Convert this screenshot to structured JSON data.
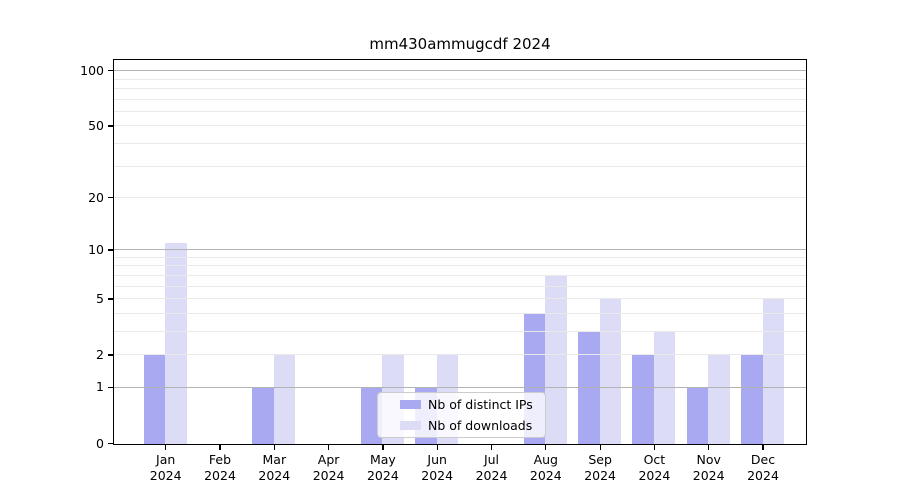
{
  "title": "mm430ammugcdf 2024",
  "colors": {
    "ips_bar": "#a9a9f1",
    "downloads_bar": "#dcdcf7",
    "grid_major": "#b3b3b3",
    "grid_minor": "#e9e9e9",
    "spine": "#000000",
    "legend_border": "#cccccc"
  },
  "legend": {
    "items": [
      {
        "label": "Nb of distinct IPs",
        "color": "#a9a9f1"
      },
      {
        "label": "Nb of downloads",
        "color": "#dcdcf7"
      }
    ]
  },
  "chart_data": {
    "type": "bar",
    "title": "mm430ammugcdf 2024",
    "categories": [
      "Jan 2024",
      "Feb 2024",
      "Mar 2024",
      "Apr 2024",
      "May 2024",
      "Jun 2024",
      "Jul 2024",
      "Aug 2024",
      "Sep 2024",
      "Oct 2024",
      "Nov 2024",
      "Dec 2024"
    ],
    "series": [
      {
        "name": "Nb of distinct IPs",
        "color": "#a9a9f1",
        "values": [
          2,
          0,
          1,
          0,
          1,
          1,
          0,
          4,
          3,
          2,
          1,
          2
        ]
      },
      {
        "name": "Nb of downloads",
        "color": "#dcdcf7",
        "values": [
          11,
          0,
          2,
          0,
          2,
          2,
          0,
          7,
          5,
          3,
          2,
          5
        ]
      }
    ],
    "xlabel": "",
    "ylabel": "",
    "yscale": "log1p",
    "ylim": [
      0,
      115
    ],
    "yticks": [
      0,
      1,
      2,
      5,
      10,
      20,
      50,
      100
    ],
    "grid": "horizontal",
    "grid_major_values": [
      1,
      10,
      100
    ],
    "grid_minor_values": [
      2,
      3,
      4,
      5,
      6,
      7,
      8,
      9,
      20,
      30,
      40,
      50,
      60,
      70,
      80,
      90
    ],
    "legend_position": "inside lower center-right"
  }
}
